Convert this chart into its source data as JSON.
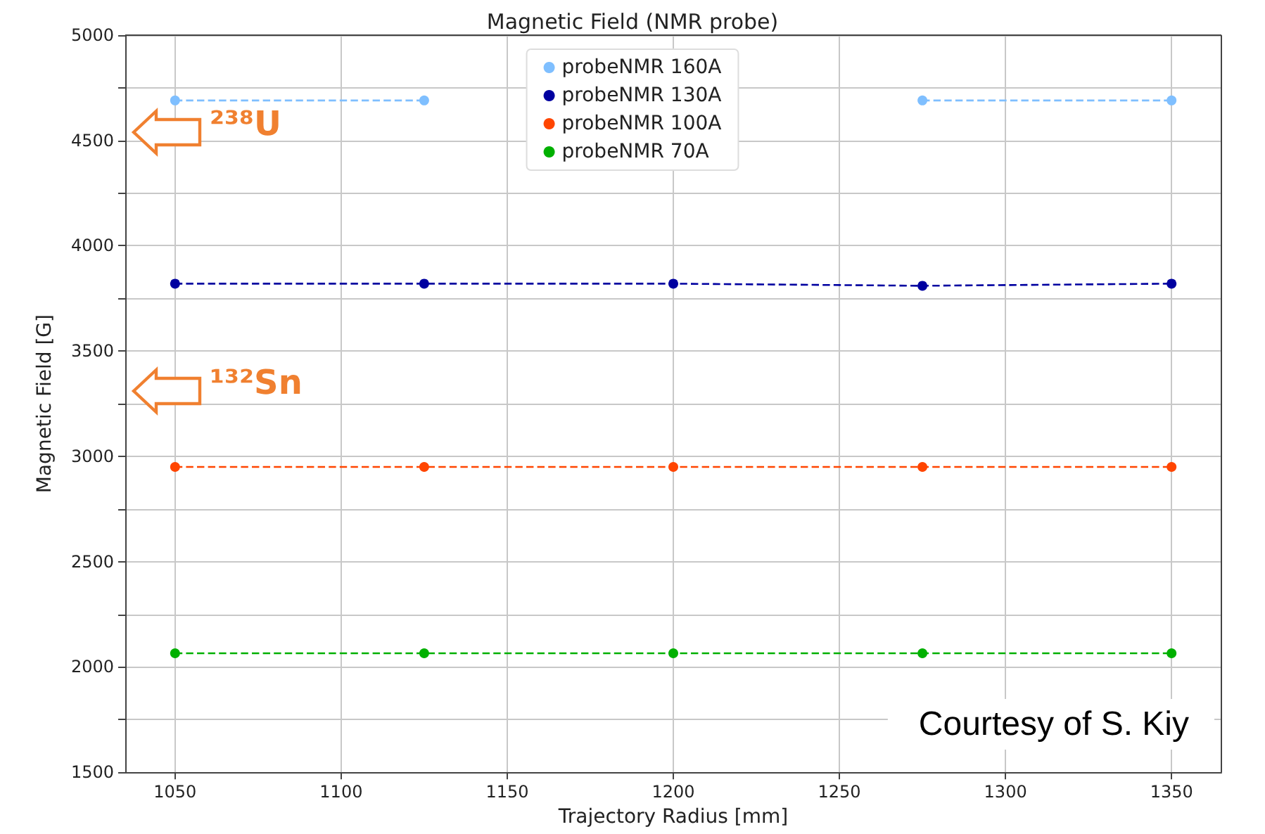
{
  "chart_data": {
    "type": "line",
    "title": "Magnetic Field (NMR probe)",
    "xlabel": "Trajectory Radius [mm]",
    "ylabel": "Magnetic Field [G]",
    "x": [
      1050,
      1125,
      1200,
      1275,
      1350
    ],
    "series": [
      {
        "name": "probeNMR 160A",
        "color": "#7fbfff",
        "values": [
          4690,
          4690,
          null,
          4690,
          4690
        ]
      },
      {
        "name": "probeNMR 130A",
        "color": "#0000a0",
        "values": [
          3820,
          3820,
          3820,
          3810,
          3820
        ]
      },
      {
        "name": "probeNMR 100A",
        "color": "#ff4500",
        "values": [
          2950,
          2950,
          2950,
          2950,
          2950
        ]
      },
      {
        "name": "probeNMR 70A",
        "color": "#00b000",
        "values": [
          2065,
          2065,
          2065,
          2065,
          2065
        ]
      }
    ],
    "xlim": [
      1035,
      1365
    ],
    "xticks": [
      1050,
      1100,
      1150,
      1200,
      1250,
      1300,
      1350
    ],
    "ylim": [
      1500,
      5000
    ],
    "yticks": [
      1500,
      {
        "value": 1750,
        "label": null
      },
      2000,
      {
        "value": 2250,
        "label": null
      },
      2500,
      {
        "value": 2750,
        "label": null
      },
      3000,
      {
        "value": 3250,
        "label": null
      },
      3500,
      {
        "value": 3750,
        "label": null
      },
      4000,
      {
        "value": 4250,
        "label": null
      },
      4500,
      {
        "value": 4750,
        "label": null
      },
      5000
    ],
    "grid": true,
    "legend": "top",
    "marker": "circle",
    "line_style": "dashed",
    "annotations": [
      "²³⁸U",
      "¹³²Sn",
      "Courtesy of S. Kiy"
    ]
  }
}
